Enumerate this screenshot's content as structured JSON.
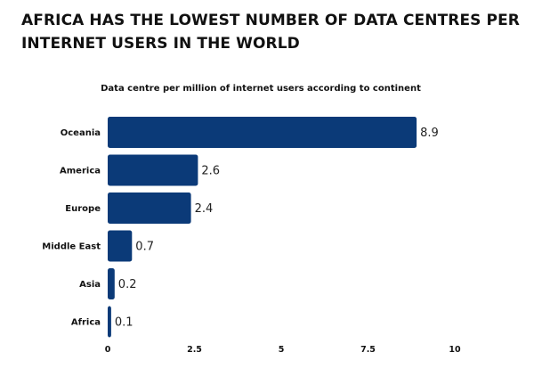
{
  "headline": "AFRICA HAS THE LOWEST NUMBER OF DATA CENTRES PER INTERNET USERS IN THE WORLD",
  "colors": {
    "bar": "#0b3a78",
    "text": "#111111",
    "background": "#ffffff"
  },
  "chart_data": {
    "type": "bar",
    "orientation": "horizontal",
    "title": "Data centre per million of internet users according to continent",
    "categories": [
      "Oceania",
      "America",
      "Europe",
      "Middle East",
      "Asia",
      "Africa"
    ],
    "values": [
      8.9,
      2.6,
      2.4,
      0.7,
      0.2,
      0.1
    ],
    "value_labels": [
      "8.9",
      "2.6",
      "2.4",
      "0.7",
      "0.2",
      "0.1"
    ],
    "xlim": [
      0,
      10
    ],
    "xticks": [
      0,
      2.5,
      5,
      7.5,
      10
    ],
    "xtick_labels": [
      "0",
      "2.5",
      "5",
      "7.5",
      "10"
    ],
    "xlabel": "",
    "ylabel": "",
    "grid": false
  }
}
